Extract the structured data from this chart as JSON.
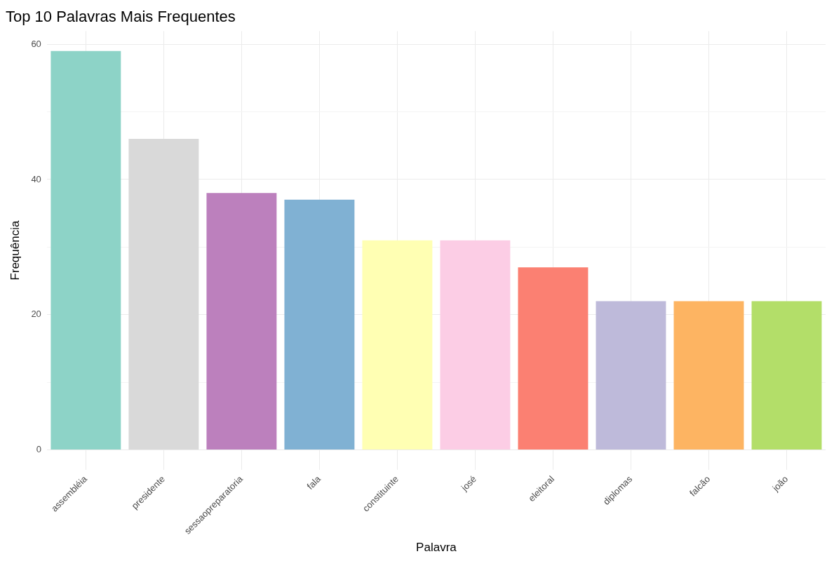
{
  "chart_data": {
    "type": "bar",
    "title": "Top 10 Palavras Mais Frequentes",
    "xlabel": "Palavra",
    "ylabel": "Frequência",
    "categories": [
      "assembléia",
      "presidente",
      "sessaopreparatoria",
      "fala",
      "constituinte",
      "josé",
      "eleitoral",
      "diplomas",
      "falcão",
      "joão"
    ],
    "values": [
      59,
      46,
      38,
      37,
      31,
      31,
      27,
      22,
      22,
      22
    ],
    "colors": [
      "#8dd3c7",
      "#d9d9d9",
      "#bc80bd",
      "#80b1d3",
      "#ffffb3",
      "#fccde5",
      "#fb8072",
      "#bebada",
      "#fdb462",
      "#b3de69"
    ],
    "ylim": [
      -2.95,
      61.95
    ],
    "yticks": [
      0,
      {
        "value": 10,
        "label": null
      },
      20,
      {
        "value": 30,
        "label": null
      },
      40,
      {
        "value": 50,
        "label": null
      },
      60
    ],
    "grid": true
  }
}
